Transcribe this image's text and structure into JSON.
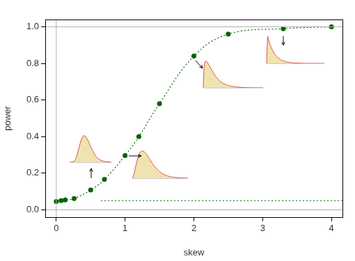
{
  "chart_data": {
    "type": "scatter",
    "x_label": "skew",
    "y_label": "power",
    "x": [
      0,
      0.07,
      0.13,
      0.26,
      0.5,
      0.7,
      1.0,
      1.2,
      1.5,
      2.0,
      2.5,
      3.3,
      4.0
    ],
    "values": [
      0.046,
      0.05,
      0.054,
      0.062,
      0.108,
      0.166,
      0.297,
      0.4,
      0.58,
      0.84,
      0.96,
      0.99,
      1.0
    ],
    "color": "#006400",
    "marker": "circle",
    "line_style": "dotted",
    "xlim": [
      -0.16,
      4.16
    ],
    "ylim": [
      -0.04,
      1.04
    ],
    "xticks": [
      0,
      1,
      2,
      3,
      4
    ],
    "yticks": [
      {
        "value": 0,
        "label": "0.0"
      },
      {
        "value": 0.2,
        "label": "0.2"
      },
      {
        "value": 0.4,
        "label": "0.4"
      },
      {
        "value": 0.6,
        "label": "0.6"
      },
      {
        "value": 0.8,
        "label": "0.8"
      },
      {
        "value": 1.0,
        "label": "1.0"
      }
    ],
    "grid": false,
    "reference_lines": {
      "h": [
        0,
        1
      ],
      "v": [
        0
      ],
      "dotted_h": {
        "y": 0.05,
        "x": [
          0.65,
          4.16
        ]
      }
    }
  }
}
